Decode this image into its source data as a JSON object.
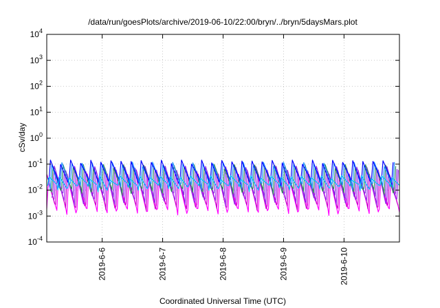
{
  "chart_data": {
    "type": "line",
    "title": "/data/run/goesPlots/archive/2019-06-10/22:00/bryn/../bryn/5daysMars.plot",
    "xlabel": "Coordinated Universal Time (UTC)",
    "ylabel": "cSv/day",
    "yscale": "log",
    "ylim": [
      0.0001,
      10000
    ],
    "y_ticks": [
      {
        "value": 0.0001,
        "base": "10",
        "exp": "-4"
      },
      {
        "value": 0.001,
        "base": "10",
        "exp": "-3"
      },
      {
        "value": 0.01,
        "base": "10",
        "exp": "-2"
      },
      {
        "value": 0.1,
        "base": "10",
        "exp": "-1"
      },
      {
        "value": 1,
        "base": "10",
        "exp": "0"
      },
      {
        "value": 10,
        "base": "10",
        "exp": "1"
      },
      {
        "value": 100,
        "base": "10",
        "exp": "2"
      },
      {
        "value": 1000,
        "base": "10",
        "exp": "3"
      },
      {
        "value": 10000,
        "base": "10",
        "exp": "4"
      }
    ],
    "xlim": [
      "2019-06-05T02:00",
      "2019-06-10T22:00"
    ],
    "x_ticks": [
      {
        "value": "2019-06-06T00:00",
        "label": "2019-6-6"
      },
      {
        "value": "2019-06-07T00:00",
        "label": "2019-6-7"
      },
      {
        "value": "2019-06-08T00:00",
        "label": "2019-6-8"
      },
      {
        "value": "2019-06-09T00:00",
        "label": "2019-6-9"
      },
      {
        "value": "2019-06-10T00:00",
        "label": "2019-6-10"
      }
    ],
    "grid": true,
    "legend": "none",
    "approx_pattern": "sawtooth, ~6 teeth per day; peaks near 0.1, troughs near 0.002 to 0.03 depending on series",
    "series": [
      {
        "color": "#ff00ff",
        "peak": 0.025,
        "trough": 0.0015
      },
      {
        "color": "#cc00cc",
        "peak": 0.035,
        "trough": 0.0022
      },
      {
        "color": "#a020f0",
        "peak": 0.05,
        "trough": 0.0035
      },
      {
        "color": "#8a2be2",
        "peak": 0.07,
        "trough": 0.006
      },
      {
        "color": "#2e8b57",
        "peak": 0.08,
        "trough": 0.009
      },
      {
        "color": "#1e90ff",
        "peak": 0.1,
        "trough": 0.014
      },
      {
        "color": "#0000ff",
        "peak": 0.12,
        "trough": 0.02
      },
      {
        "color": "#00bfff",
        "peak": 0.03,
        "trough": 0.012
      }
    ]
  }
}
